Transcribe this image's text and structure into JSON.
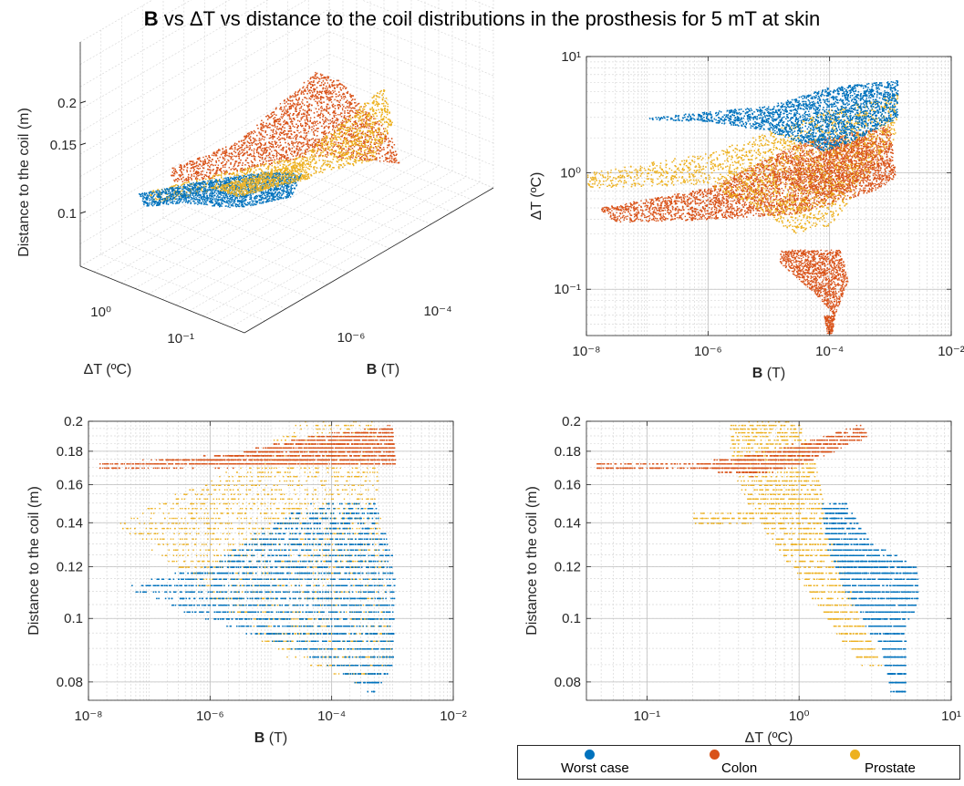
{
  "title": {
    "bold": "B",
    "rest": " vs ΔT vs distance to the coil distributions in the prosthesis for 5 mT at skin"
  },
  "legend": [
    {
      "label": "Worst case",
      "color": "#0072BD"
    },
    {
      "label": "Colon",
      "color": "#D95319"
    },
    {
      "label": "Prostate",
      "color": "#EDB120"
    }
  ],
  "chart_data": [
    {
      "id": "p3d",
      "type": "scatter",
      "xlabel": {
        "bold": "B",
        "rest": " (T)"
      },
      "ylabel": "ΔT (ºC)",
      "zlabel": "Distance to the coil (m)",
      "x_ticks": [
        "10⁻⁶",
        "10⁻⁴"
      ],
      "y_ticks": [
        "10⁻¹",
        "10⁰"
      ],
      "z_ticks": [
        "0.1",
        "0.15",
        "0.2"
      ],
      "grid": true
    },
    {
      "id": "pBT",
      "type": "scatter",
      "x_scale": "log",
      "y_scale": "log",
      "xlim": [
        1e-08,
        0.01
      ],
      "ylim": [
        0.04,
        10
      ],
      "x_ticks": [
        {
          "v": 1e-08,
          "l": "10⁻⁸"
        },
        {
          "v": 1e-06,
          "l": "10⁻⁶"
        },
        {
          "v": 0.0001,
          "l": "10⁻⁴"
        },
        {
          "v": 0.01,
          "l": "10⁻²"
        }
      ],
      "y_ticks": [
        {
          "v": 0.1,
          "l": "10⁻¹"
        },
        {
          "v": 1,
          "l": "10⁰"
        },
        {
          "v": 10,
          "l": "10¹"
        }
      ],
      "xlabel": {
        "bold": "B",
        "rest": " (T)"
      },
      "ylabel": "ΔT (ºC)",
      "grid": true,
      "series": [
        {
          "name": "Colon",
          "color": "#D95319",
          "regions": [
            {
              "poly": [
                [
                  1.5e-08,
                  0.5
                ],
                [
                  1e-06,
                  0.75
                ],
                [
                  3e-05,
                  1.8
                ],
                [
                  0.001,
                  2.6
                ],
                [
                  0.0012,
                  0.9
                ],
                [
                  0.0005,
                  0.7
                ],
                [
                  3e-05,
                  0.45
                ],
                [
                  1e-06,
                  0.4
                ],
                [
                  3e-08,
                  0.38
                ]
              ],
              "n": 5500
            },
            {
              "poly": [
                [
                  1.5e-05,
                  0.22
                ],
                [
                  0.00015,
                  0.22
                ],
                [
                  0.0002,
                  0.12
                ],
                [
                  0.00012,
                  0.06
                ],
                [
                  6e-05,
                  0.09
                ],
                [
                  1.5e-05,
                  0.17
                ]
              ],
              "n": 1200
            },
            {
              "poly": [
                [
                  8e-05,
                  0.06
                ],
                [
                  0.00012,
                  0.06
                ],
                [
                  0.00011,
                  0.042
                ],
                [
                  9e-05,
                  0.042
                ]
              ],
              "n": 150
            }
          ]
        },
        {
          "name": "Prostate",
          "color": "#EDB120",
          "regions": [
            {
              "poly": [
                [
                  1e-08,
                  1.0
                ],
                [
                  1e-06,
                  1.5
                ],
                [
                  0.0001,
                  3.5
                ],
                [
                  0.0013,
                  4.8
                ],
                [
                  0.0012,
                  2.0
                ],
                [
                  0.0001,
                  0.35
                ],
                [
                  3e-05,
                  0.3
                ],
                [
                  1e-06,
                  0.8
                ],
                [
                  1e-08,
                  0.75
                ]
              ],
              "n": 3800
            }
          ]
        },
        {
          "name": "Worst case",
          "color": "#0072BD",
          "regions": [
            {
              "poly": [
                [
                  1e-07,
                  3.0
                ],
                [
                  1e-05,
                  3.8
                ],
                [
                  0.0001,
                  5.5
                ],
                [
                  0.0013,
                  6.3
                ],
                [
                  0.0013,
                  3.0
                ],
                [
                  0.0001,
                  1.5
                ],
                [
                  1e-05,
                  2.3
                ],
                [
                  1e-06,
                  2.8
                ],
                [
                  1e-07,
                  2.9
                ]
              ],
              "n": 4500
            }
          ]
        },
        {
          "name": "Colon",
          "color": "#D95319",
          "regions": [
            {
              "poly": [
                [
                  1e-05,
                  1.0
                ],
                [
                  0.0003,
                  2.0
                ],
                [
                  0.001,
                  1.2
                ],
                [
                  0.0001,
                  0.6
                ]
              ],
              "n": 700
            }
          ]
        }
      ]
    },
    {
      "id": "pBD",
      "type": "scatter",
      "x_scale": "log",
      "y_scale": "log",
      "xlim": [
        1e-08,
        0.01
      ],
      "ylim": [
        0.075,
        0.2
      ],
      "x_ticks": [
        {
          "v": 1e-08,
          "l": "10⁻⁸"
        },
        {
          "v": 1e-06,
          "l": "10⁻⁶"
        },
        {
          "v": 0.0001,
          "l": "10⁻⁴"
        },
        {
          "v": 0.01,
          "l": "10⁻²"
        }
      ],
      "y_ticks": [
        {
          "v": 0.08,
          "l": "0.08"
        },
        {
          "v": 0.1,
          "l": "0.1"
        },
        {
          "v": 0.12,
          "l": "0.12"
        },
        {
          "v": 0.14,
          "l": "0.14"
        },
        {
          "v": 0.16,
          "l": "0.16"
        },
        {
          "v": 0.18,
          "l": "0.18"
        },
        {
          "v": 0.2,
          "l": "0.2"
        }
      ],
      "xlabel": {
        "bold": "B",
        "rest": " (T)"
      },
      "ylabel": "Distance to the coil (m)",
      "grid": true,
      "series": [
        {
          "name": "Prostate",
          "color": "#EDB120",
          "regions": [
            {
              "poly": [
                [
                  3e-05,
                  0.2
                ],
                [
                  0.0005,
                  0.2
                ],
                [
                  0.0006,
                  0.15
                ],
                [
                  0.001,
                  0.085
                ],
                [
                  0.0003,
                  0.08
                ],
                [
                  1e-05,
                  0.09
                ],
                [
                  3e-07,
                  0.12
                ],
                [
                  3e-08,
                  0.14
                ],
                [
                  3e-07,
                  0.155
                ],
                [
                  3e-06,
                  0.17
                ]
              ],
              "n": 2600
            }
          ]
        },
        {
          "name": "Colon",
          "color": "#D95319",
          "regions": [
            {
              "poly": [
                [
                  1.5e-08,
                  0.172
                ],
                [
                  2e-06,
                  0.178
                ],
                [
                  5e-05,
                  0.19
                ],
                [
                  0.001,
                  0.197
                ],
                [
                  0.0011,
                  0.172
                ],
                [
                  1e-06,
                  0.171
                ],
                [
                  1.5e-08,
                  0.17
                ]
              ],
              "n": 2800
            }
          ]
        },
        {
          "name": "Worst case",
          "color": "#0072BD",
          "regions": [
            {
              "poly": [
                [
                  5e-05,
                  0.15
                ],
                [
                  0.0005,
                  0.15
                ],
                [
                  0.0011,
                  0.12
                ],
                [
                  0.001,
                  0.085
                ],
                [
                  0.0005,
                  0.077
                ],
                [
                  0.0001,
                  0.085
                ],
                [
                  1e-05,
                  0.093
                ],
                [
                  1e-06,
                  0.1
                ],
                [
                  4e-08,
                  0.112
                ],
                [
                  1e-06,
                  0.12
                ],
                [
                  1e-05,
                  0.14
                ]
              ],
              "n": 5800
            }
          ]
        }
      ]
    },
    {
      "id": "pTD",
      "type": "scatter",
      "x_scale": "log",
      "y_scale": "log",
      "xlim": [
        0.04,
        10
      ],
      "ylim": [
        0.075,
        0.2
      ],
      "x_ticks": [
        {
          "v": 0.1,
          "l": "10⁻¹"
        },
        {
          "v": 1,
          "l": "10⁰"
        },
        {
          "v": 10,
          "l": "10¹"
        }
      ],
      "y_ticks": [
        {
          "v": 0.08,
          "l": "0.08"
        },
        {
          "v": 0.1,
          "l": "0.1"
        },
        {
          "v": 0.12,
          "l": "0.12"
        },
        {
          "v": 0.14,
          "l": "0.14"
        },
        {
          "v": 0.16,
          "l": "0.16"
        },
        {
          "v": 0.18,
          "l": "0.18"
        },
        {
          "v": 0.2,
          "l": "0.2"
        }
      ],
      "xlabel": {
        "bold": "",
        "rest": "ΔT (ºC)"
      },
      "ylabel": "Distance to the coil (m)",
      "grid": true,
      "series": [
        {
          "name": "Prostate",
          "color": "#EDB120",
          "regions": [
            {
              "poly": [
                [
                  0.35,
                  0.2
                ],
                [
                  1.0,
                  0.2
                ],
                [
                  1.3,
                  0.17
                ],
                [
                  1.5,
                  0.14
                ],
                [
                  2.5,
                  0.1
                ],
                [
                  3.5,
                  0.085
                ],
                [
                  2.5,
                  0.086
                ],
                [
                  1.5,
                  0.1
                ],
                [
                  0.9,
                  0.12
                ],
                [
                  0.55,
                  0.14
                ],
                [
                  0.4,
                  0.16
                ],
                [
                  0.35,
                  0.18
                ]
              ],
              "n": 2200
            },
            {
              "poly": [
                [
                  0.2,
                  0.14
                ],
                [
                  0.5,
                  0.14
                ],
                [
                  0.5,
                  0.145
                ],
                [
                  0.2,
                  0.145
                ]
              ],
              "n": 120
            }
          ]
        },
        {
          "name": "Colon",
          "color": "#D95319",
          "regions": [
            {
              "poly": [
                [
                  0.045,
                  0.172
                ],
                [
                  0.2,
                  0.172
                ],
                [
                  0.5,
                  0.178
                ],
                [
                  1.0,
                  0.185
                ],
                [
                  2.5,
                  0.197
                ],
                [
                  2.8,
                  0.19
                ],
                [
                  1.0,
                  0.172
                ],
                [
                  0.5,
                  0.166
                ],
                [
                  0.2,
                  0.17
                ],
                [
                  0.045,
                  0.17
                ]
              ],
              "n": 1900
            }
          ]
        },
        {
          "name": "Worst case",
          "color": "#0072BD",
          "regions": [
            {
              "poly": [
                [
                  1.4,
                  0.15
                ],
                [
                  2.0,
                  0.15
                ],
                [
                  3.0,
                  0.13
                ],
                [
                  6.0,
                  0.12
                ],
                [
                  6.0,
                  0.105
                ],
                [
                  5.0,
                  0.1
                ],
                [
                  5.0,
                  0.076
                ],
                [
                  4.0,
                  0.076
                ],
                [
                  3.5,
                  0.09
                ],
                [
                  2.0,
                  0.11
                ],
                [
                  1.5,
                  0.13
                ]
              ],
              "n": 2800
            }
          ]
        }
      ]
    }
  ]
}
